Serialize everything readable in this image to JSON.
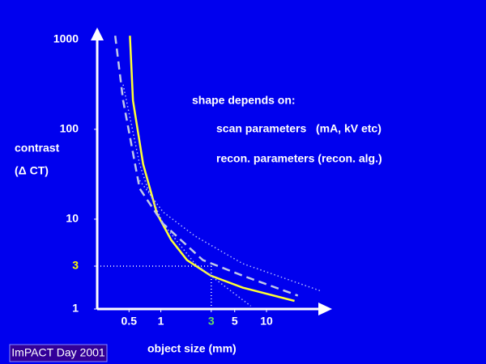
{
  "chart_data": {
    "type": "line",
    "y_label_lines": [
      "contrast",
      "(Δ CT)"
    ],
    "xlabel": "object size (mm)",
    "annotations": [
      "shape depends on:",
      "scan parameters   (mA, kV etc)",
      "recon. parameters (recon. alg.)"
    ],
    "footer": "ImPACT Day 2001",
    "xscale": "log",
    "yscale": "log",
    "xlim": [
      0.25,
      35
    ],
    "ylim": [
      1,
      1200
    ],
    "xticks": [
      0.5,
      1,
      3,
      5,
      10
    ],
    "yticks": [
      1,
      3,
      10,
      100,
      1000
    ],
    "highlight": {
      "x": 3,
      "y": 3,
      "x_color": "#66dd66",
      "y_color": "#ffff00",
      "line_color": "#ffffff"
    },
    "series": [
      {
        "color": "#ffff33",
        "dash": "solid",
        "x": [
          0.51,
          0.545,
          0.68,
          0.92,
          1.25,
          1.77,
          2.97,
          5.95,
          18.4
        ],
        "values": [
          1100,
          209,
          41,
          11.5,
          5.9,
          3.5,
          2.35,
          1.73,
          1.23
        ]
      },
      {
        "color": "#c0c8e8",
        "dash": "dashed",
        "x": [
          0.37,
          0.44,
          0.63,
          1.05,
          2.5,
          5.95,
          19.8
        ],
        "values": [
          1100,
          209,
          22,
          8.9,
          3.5,
          2.35,
          1.41
        ]
      },
      {
        "color": "#b0b8ff",
        "dash": "dotted",
        "x": [
          0.63,
          1.05,
          2.1,
          5.95,
          33.5
        ],
        "values": [
          27,
          12,
          6.5,
          3.2,
          1.57
        ]
      },
      {
        "color": "#b0b8ff",
        "dash": "dotted",
        "x": [
          0.44,
          0.63,
          0.75,
          1.05,
          2.1,
          7.1
        ],
        "values": [
          314,
          41,
          22,
          8.9,
          3.2,
          1.08
        ]
      }
    ]
  }
}
